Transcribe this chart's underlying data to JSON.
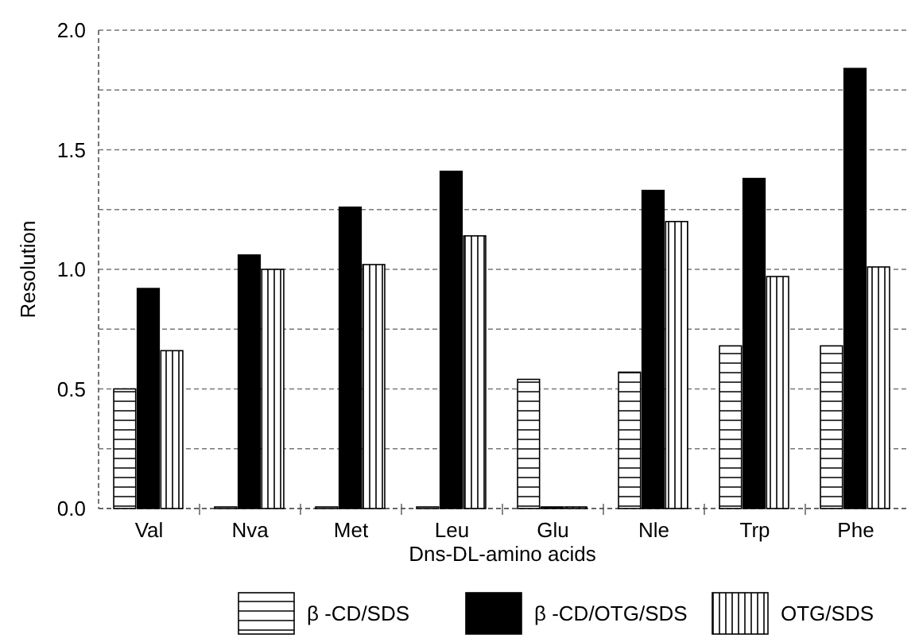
{
  "chart_data": {
    "type": "bar",
    "xlabel": "Dns-DL-amino acids",
    "ylabel": "Resolution",
    "categories": [
      "Val",
      "Nva",
      "Met",
      "Leu",
      "Glu",
      "Nle",
      "Trp",
      "Phe"
    ],
    "series": [
      {
        "name": "β -CD/SDS",
        "color": "#000000",
        "values": [
          0.5,
          0,
          0,
          0,
          0.54,
          0.57,
          0.68,
          0.68
        ]
      },
      {
        "name": "β  -CD/OTG/SDS",
        "color": "#000000",
        "values": [
          0.92,
          1.06,
          1.26,
          1.41,
          0,
          1.33,
          1.38,
          1.84
        ]
      },
      {
        "name": "OTG/SDS",
        "color": "#000000",
        "values": [
          0.66,
          1.0,
          1.02,
          1.14,
          0,
          1.2,
          0.97,
          1.01
        ]
      }
    ],
    "ylim": [
      0,
      2
    ],
    "yticks": [
      {
        "value": 0,
        "label": "0.0"
      },
      {
        "value": 0.25,
        "label": null
      },
      {
        "value": 0.5,
        "label": "0.5"
      },
      {
        "value": 0.75,
        "label": null
      },
      {
        "value": 1,
        "label": "1.0"
      },
      {
        "value": 1.25,
        "label": null
      },
      {
        "value": 1.5,
        "label": "1.5"
      },
      {
        "value": 1.75,
        "label": null
      },
      {
        "value": 2,
        "label": "2.0"
      }
    ],
    "grid": "y",
    "legend": "bottom"
  }
}
